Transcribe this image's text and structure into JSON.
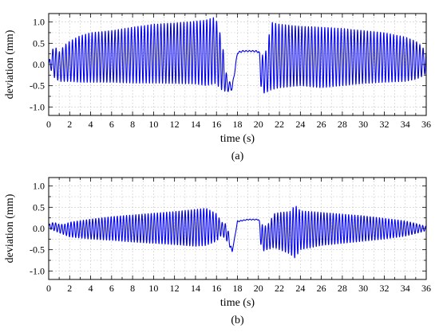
{
  "chart_data": [
    {
      "type": "line",
      "panel_label": "(a)",
      "xlabel": "time (s)",
      "ylabel": "deviation (mm)",
      "xlim": [
        0,
        36
      ],
      "ylim": [
        -1.2,
        1.2
      ],
      "xticks": [
        0,
        2,
        4,
        6,
        8,
        10,
        12,
        14,
        16,
        18,
        20,
        22,
        24,
        26,
        28,
        30,
        32,
        34,
        36
      ],
      "yticks": [
        -1.0,
        -0.5,
        0.0,
        0.5,
        1.0
      ],
      "xtick_labels": [
        "0",
        "2",
        "4",
        "6",
        "8",
        "10",
        "12",
        "14",
        "16",
        "18",
        "20",
        "22",
        "24",
        "26",
        "28",
        "30",
        "32",
        "34",
        "36"
      ],
      "ytick_labels": [
        "-1.0",
        "-0.5",
        "0.0",
        "0.5",
        "1.0"
      ],
      "grid": true,
      "color": "#0000ee",
      "series": [
        {
          "oscillation_envelope": {
            "t": [
              0.0,
              0.5,
              1.0,
              1.5,
              2.0,
              3.0,
              4.0,
              6.0,
              8.0,
              10.0,
              12.0,
              14.0,
              15.0,
              15.9,
              16.5,
              17.0,
              17.5,
              18.0,
              18.5,
              19.0,
              19.5,
              20.0,
              20.3,
              20.8,
              21.2,
              22.0,
              24.0,
              26.0,
              28.0,
              30.0,
              32.0,
              34.0,
              35.0,
              35.5,
              36.0
            ],
            "upper": [
              0.05,
              0.45,
              0.3,
              0.45,
              0.55,
              0.68,
              0.75,
              0.8,
              0.88,
              0.95,
              0.98,
              1.02,
              1.05,
              1.12,
              0.6,
              -0.3,
              -0.5,
              0.3,
              0.33,
              0.33,
              0.33,
              0.33,
              0.2,
              0.35,
              1.0,
              0.95,
              0.9,
              0.88,
              0.85,
              0.8,
              0.75,
              0.65,
              0.55,
              0.45,
              0.3
            ],
            "lower": [
              0.0,
              -0.3,
              -0.4,
              -0.4,
              -0.4,
              -0.42,
              -0.42,
              -0.42,
              -0.44,
              -0.44,
              -0.45,
              -0.46,
              -0.5,
              -0.45,
              -0.6,
              -0.65,
              -0.6,
              0.25,
              0.3,
              0.3,
              0.3,
              0.28,
              -0.7,
              -0.65,
              -0.6,
              -0.55,
              -0.5,
              -0.55,
              -0.5,
              -0.45,
              -0.42,
              -0.4,
              -0.35,
              -0.3,
              -0.2
            ]
          },
          "cycles_per_second": 3.2
        }
      ]
    },
    {
      "type": "line",
      "panel_label": "(b)",
      "xlabel": "time (s)",
      "ylabel": "deviation (mm)",
      "xlim": [
        0,
        36
      ],
      "ylim": [
        -1.2,
        1.2
      ],
      "xticks": [
        0,
        2,
        4,
        6,
        8,
        10,
        12,
        14,
        16,
        18,
        20,
        22,
        24,
        26,
        28,
        30,
        32,
        34,
        36
      ],
      "yticks": [
        -1.0,
        -0.5,
        0.0,
        0.5,
        1.0
      ],
      "xtick_labels": [
        "0",
        "2",
        "4",
        "6",
        "8",
        "10",
        "12",
        "14",
        "16",
        "18",
        "20",
        "22",
        "24",
        "26",
        "28",
        "30",
        "32",
        "34",
        "36"
      ],
      "ytick_labels": [
        "-1.0",
        "-0.5",
        "0.0",
        "0.5",
        "1.0"
      ],
      "grid": true,
      "color": "#0000ee",
      "series": [
        {
          "oscillation_envelope": {
            "t": [
              0.0,
              0.5,
              1.0,
              1.5,
              2.0,
              4.0,
              6.0,
              8.0,
              10.0,
              12.0,
              14.0,
              15.0,
              16.0,
              16.5,
              17.0,
              17.5,
              18.0,
              18.5,
              19.0,
              19.5,
              20.0,
              20.3,
              20.8,
              21.5,
              22.0,
              23.0,
              23.5,
              24.0,
              26.0,
              28.0,
              30.0,
              32.0,
              34.0,
              35.0,
              36.0
            ],
            "upper": [
              0.1,
              0.15,
              0.1,
              0.1,
              0.15,
              0.22,
              0.28,
              0.32,
              0.36,
              0.4,
              0.45,
              0.48,
              0.35,
              0.15,
              0.1,
              -0.55,
              0.18,
              0.2,
              0.22,
              0.22,
              0.22,
              0.1,
              0.05,
              0.35,
              0.38,
              0.4,
              0.55,
              0.42,
              0.38,
              0.34,
              0.3,
              0.24,
              0.18,
              0.12,
              0.05
            ],
            "lower": [
              0.0,
              -0.05,
              -0.1,
              -0.15,
              -0.2,
              -0.25,
              -0.28,
              -0.32,
              -0.35,
              -0.38,
              -0.42,
              -0.4,
              -0.3,
              -0.15,
              -0.3,
              -0.55,
              0.15,
              0.18,
              0.2,
              0.2,
              0.2,
              -0.55,
              -0.5,
              -0.45,
              -0.5,
              -0.6,
              -0.7,
              -0.5,
              -0.4,
              -0.35,
              -0.3,
              -0.25,
              -0.18,
              -0.12,
              -0.05
            ]
          },
          "cycles_per_second": 3.4
        }
      ]
    }
  ]
}
